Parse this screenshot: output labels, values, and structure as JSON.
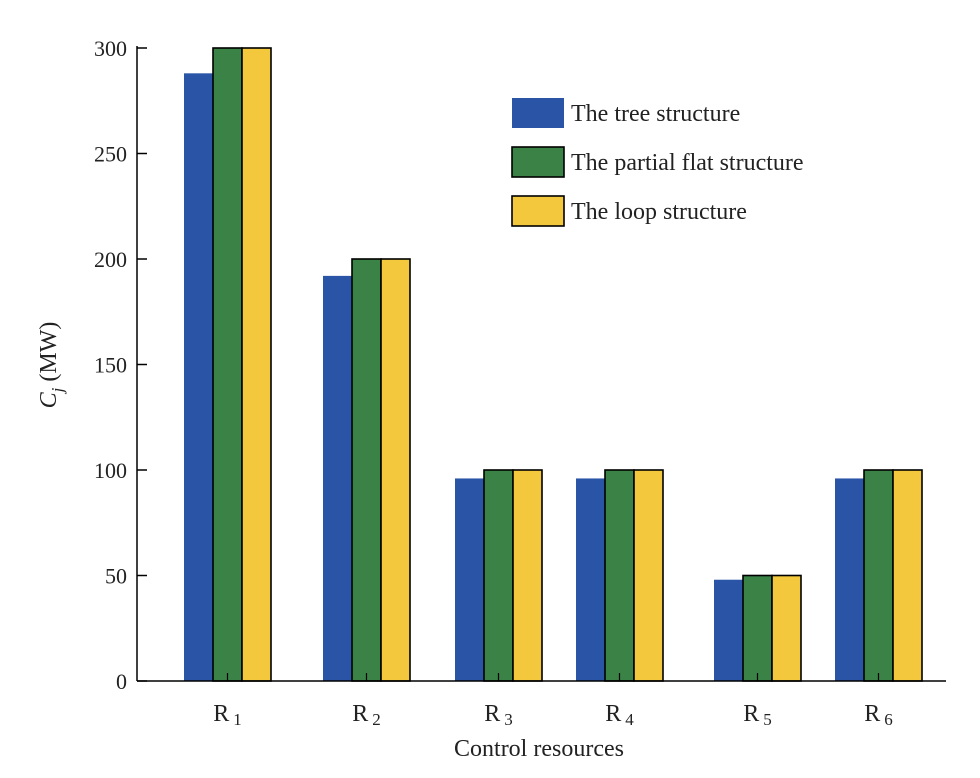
{
  "chart_data": {
    "type": "bar",
    "categories": [
      {
        "base": "R",
        "sub": "1"
      },
      {
        "base": "R",
        "sub": "2"
      },
      {
        "base": "R",
        "sub": "3"
      },
      {
        "base": "R",
        "sub": "4"
      },
      {
        "base": "R",
        "sub": "5"
      },
      {
        "base": "R",
        "sub": "6"
      }
    ],
    "series": [
      {
        "name": "The tree structure",
        "color": "#2a55a6",
        "values": [
          288,
          192,
          96,
          96,
          48,
          96
        ]
      },
      {
        "name": "The partial flat structure",
        "color": "#3a8246",
        "values": [
          300,
          200,
          100,
          100,
          50,
          100
        ]
      },
      {
        "name": "The loop structure",
        "color": "#f3c83c",
        "values": [
          300,
          200,
          100,
          100,
          50,
          100
        ]
      }
    ],
    "xlabel": "Control resources",
    "ylabel": {
      "var": "C",
      "sub": "j",
      "unit": "(MW)"
    },
    "ylim": [
      0,
      300
    ],
    "yticks": [
      0,
      50,
      100,
      150,
      200,
      250,
      300
    ],
    "legend_position": "top-right",
    "grid": false
  }
}
